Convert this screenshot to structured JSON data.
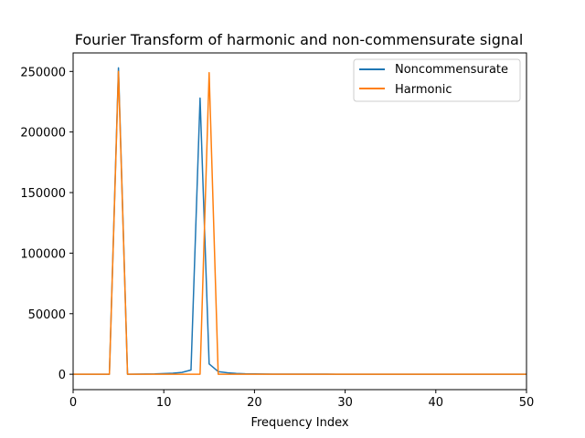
{
  "chart_data": {
    "type": "line",
    "title": "Fourier Transform of harmonic and non-commensurate signal",
    "xlabel": "Frequency Index",
    "ylabel": "",
    "xlim": [
      0,
      50
    ],
    "ylim": [
      -12700,
      265300
    ],
    "xticks": [
      0,
      10,
      20,
      30,
      40,
      50
    ],
    "yticks": [
      0,
      50000,
      100000,
      150000,
      200000,
      250000
    ],
    "grid": false,
    "legend_position": "top-right",
    "series": [
      {
        "name": "Noncommensurate",
        "color": "#1f77b4",
        "x": [
          0,
          1,
          2,
          3,
          4,
          5,
          6,
          7,
          8,
          9,
          10,
          11,
          12,
          13,
          14,
          15,
          16,
          17,
          18,
          19,
          20,
          21,
          22,
          23,
          24,
          25,
          26,
          27,
          28,
          29,
          30,
          31,
          32,
          33,
          34,
          35,
          36,
          37,
          38,
          39,
          40,
          41,
          42,
          43,
          44,
          45,
          46,
          47,
          48,
          49,
          50
        ],
        "y": [
          0,
          0,
          0,
          0,
          0,
          253000,
          0,
          100,
          200,
          300,
          600,
          900,
          1500,
          3500,
          228000,
          8500,
          2200,
          1200,
          700,
          400,
          300,
          200,
          150,
          120,
          100,
          90,
          80,
          70,
          60,
          50,
          50,
          40,
          40,
          30,
          30,
          30,
          20,
          20,
          20,
          20,
          10,
          10,
          10,
          10,
          10,
          10,
          10,
          10,
          10,
          10,
          10
        ]
      },
      {
        "name": "Harmonic",
        "color": "#ff7f0e",
        "x": [
          0,
          1,
          2,
          3,
          4,
          5,
          6,
          7,
          8,
          9,
          10,
          11,
          12,
          13,
          14,
          15,
          16,
          17,
          18,
          19,
          20,
          21,
          22,
          23,
          24,
          25,
          26,
          27,
          28,
          29,
          30,
          31,
          32,
          33,
          34,
          35,
          36,
          37,
          38,
          39,
          40,
          41,
          42,
          43,
          44,
          45,
          46,
          47,
          48,
          49,
          50
        ],
        "y": [
          0,
          0,
          0,
          0,
          0,
          250000,
          0,
          0,
          0,
          0,
          0,
          0,
          0,
          0,
          0,
          249000,
          0,
          0,
          0,
          0,
          0,
          0,
          0,
          0,
          0,
          0,
          0,
          0,
          0,
          0,
          0,
          0,
          0,
          0,
          0,
          0,
          0,
          0,
          0,
          0,
          0,
          0,
          0,
          0,
          0,
          0,
          0,
          0,
          0,
          0,
          0
        ]
      }
    ]
  }
}
